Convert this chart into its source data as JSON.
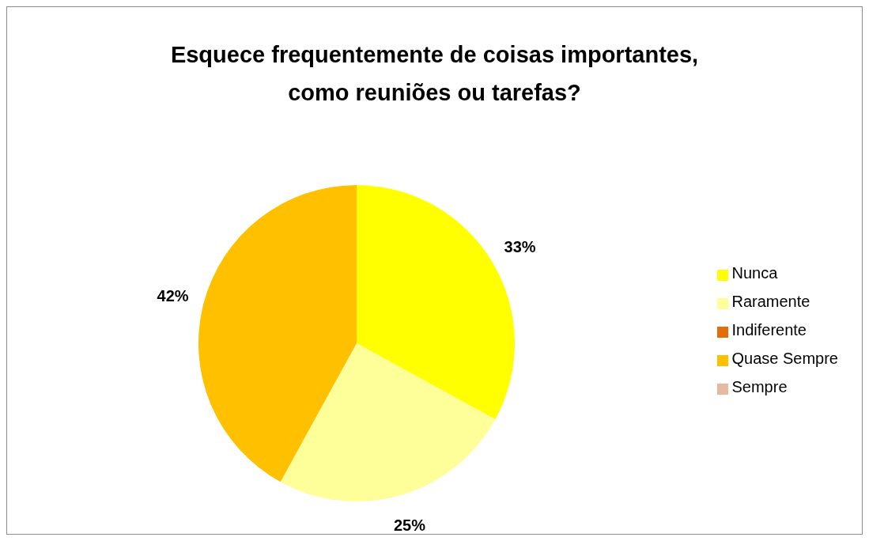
{
  "chart_data": {
    "type": "pie",
    "title": "Esquece frequentemente de coisas importantes,\ncomo reuniões ou tarefas?",
    "categories": [
      "Nunca",
      "Raramente",
      "Indiferente",
      "Quase Sempre",
      "Sempre"
    ],
    "values": [
      33,
      25,
      0,
      42,
      0
    ],
    "colors": [
      "#ffff00",
      "#ffff99",
      "#e46c0a",
      "#ffc000",
      "#e6b9a0"
    ],
    "value_labels": [
      "33%",
      "25%",
      null,
      "42%",
      null
    ],
    "legend": "right"
  }
}
